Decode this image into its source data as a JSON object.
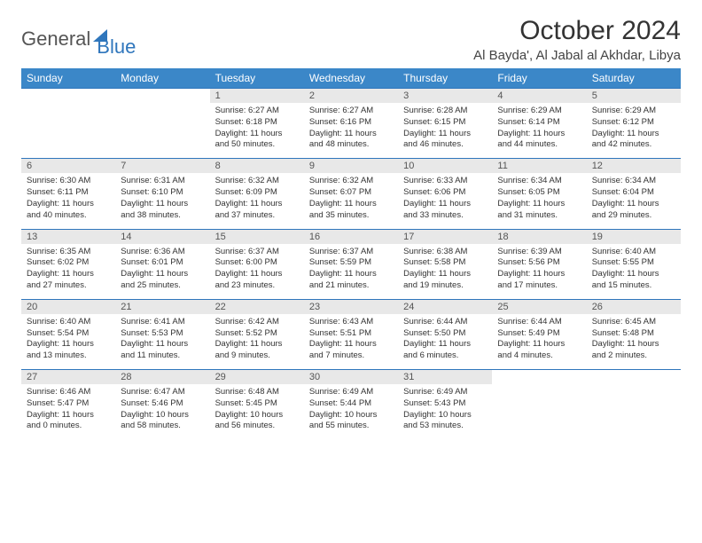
{
  "logo": {
    "part1": "General",
    "part2": "Blue"
  },
  "title": "October 2024",
  "location": "Al Bayda', Al Jabal al Akhdar, Libya",
  "colors": {
    "header_bg": "#3b87c8",
    "header_text": "#ffffff",
    "daynum_bg": "#e8e8e8",
    "border": "#2f76bc",
    "logo_blue": "#2f76bc"
  },
  "dayNames": [
    "Sunday",
    "Monday",
    "Tuesday",
    "Wednesday",
    "Thursday",
    "Friday",
    "Saturday"
  ],
  "weeks": [
    {
      "nums": [
        "",
        "",
        "1",
        "2",
        "3",
        "4",
        "5"
      ],
      "cells": [
        null,
        null,
        {
          "sunrise": "6:27 AM",
          "sunset": "6:18 PM",
          "daylight": "11 hours and 50 minutes."
        },
        {
          "sunrise": "6:27 AM",
          "sunset": "6:16 PM",
          "daylight": "11 hours and 48 minutes."
        },
        {
          "sunrise": "6:28 AM",
          "sunset": "6:15 PM",
          "daylight": "11 hours and 46 minutes."
        },
        {
          "sunrise": "6:29 AM",
          "sunset": "6:14 PM",
          "daylight": "11 hours and 44 minutes."
        },
        {
          "sunrise": "6:29 AM",
          "sunset": "6:12 PM",
          "daylight": "11 hours and 42 minutes."
        }
      ]
    },
    {
      "nums": [
        "6",
        "7",
        "8",
        "9",
        "10",
        "11",
        "12"
      ],
      "cells": [
        {
          "sunrise": "6:30 AM",
          "sunset": "6:11 PM",
          "daylight": "11 hours and 40 minutes."
        },
        {
          "sunrise": "6:31 AM",
          "sunset": "6:10 PM",
          "daylight": "11 hours and 38 minutes."
        },
        {
          "sunrise": "6:32 AM",
          "sunset": "6:09 PM",
          "daylight": "11 hours and 37 minutes."
        },
        {
          "sunrise": "6:32 AM",
          "sunset": "6:07 PM",
          "daylight": "11 hours and 35 minutes."
        },
        {
          "sunrise": "6:33 AM",
          "sunset": "6:06 PM",
          "daylight": "11 hours and 33 minutes."
        },
        {
          "sunrise": "6:34 AM",
          "sunset": "6:05 PM",
          "daylight": "11 hours and 31 minutes."
        },
        {
          "sunrise": "6:34 AM",
          "sunset": "6:04 PM",
          "daylight": "11 hours and 29 minutes."
        }
      ]
    },
    {
      "nums": [
        "13",
        "14",
        "15",
        "16",
        "17",
        "18",
        "19"
      ],
      "cells": [
        {
          "sunrise": "6:35 AM",
          "sunset": "6:02 PM",
          "daylight": "11 hours and 27 minutes."
        },
        {
          "sunrise": "6:36 AM",
          "sunset": "6:01 PM",
          "daylight": "11 hours and 25 minutes."
        },
        {
          "sunrise": "6:37 AM",
          "sunset": "6:00 PM",
          "daylight": "11 hours and 23 minutes."
        },
        {
          "sunrise": "6:37 AM",
          "sunset": "5:59 PM",
          "daylight": "11 hours and 21 minutes."
        },
        {
          "sunrise": "6:38 AM",
          "sunset": "5:58 PM",
          "daylight": "11 hours and 19 minutes."
        },
        {
          "sunrise": "6:39 AM",
          "sunset": "5:56 PM",
          "daylight": "11 hours and 17 minutes."
        },
        {
          "sunrise": "6:40 AM",
          "sunset": "5:55 PM",
          "daylight": "11 hours and 15 minutes."
        }
      ]
    },
    {
      "nums": [
        "20",
        "21",
        "22",
        "23",
        "24",
        "25",
        "26"
      ],
      "cells": [
        {
          "sunrise": "6:40 AM",
          "sunset": "5:54 PM",
          "daylight": "11 hours and 13 minutes."
        },
        {
          "sunrise": "6:41 AM",
          "sunset": "5:53 PM",
          "daylight": "11 hours and 11 minutes."
        },
        {
          "sunrise": "6:42 AM",
          "sunset": "5:52 PM",
          "daylight": "11 hours and 9 minutes."
        },
        {
          "sunrise": "6:43 AM",
          "sunset": "5:51 PM",
          "daylight": "11 hours and 7 minutes."
        },
        {
          "sunrise": "6:44 AM",
          "sunset": "5:50 PM",
          "daylight": "11 hours and 6 minutes."
        },
        {
          "sunrise": "6:44 AM",
          "sunset": "5:49 PM",
          "daylight": "11 hours and 4 minutes."
        },
        {
          "sunrise": "6:45 AM",
          "sunset": "5:48 PM",
          "daylight": "11 hours and 2 minutes."
        }
      ]
    },
    {
      "nums": [
        "27",
        "28",
        "29",
        "30",
        "31",
        "",
        ""
      ],
      "cells": [
        {
          "sunrise": "6:46 AM",
          "sunset": "5:47 PM",
          "daylight": "11 hours and 0 minutes."
        },
        {
          "sunrise": "6:47 AM",
          "sunset": "5:46 PM",
          "daylight": "10 hours and 58 minutes."
        },
        {
          "sunrise": "6:48 AM",
          "sunset": "5:45 PM",
          "daylight": "10 hours and 56 minutes."
        },
        {
          "sunrise": "6:49 AM",
          "sunset": "5:44 PM",
          "daylight": "10 hours and 55 minutes."
        },
        {
          "sunrise": "6:49 AM",
          "sunset": "5:43 PM",
          "daylight": "10 hours and 53 minutes."
        },
        null,
        null
      ]
    }
  ]
}
